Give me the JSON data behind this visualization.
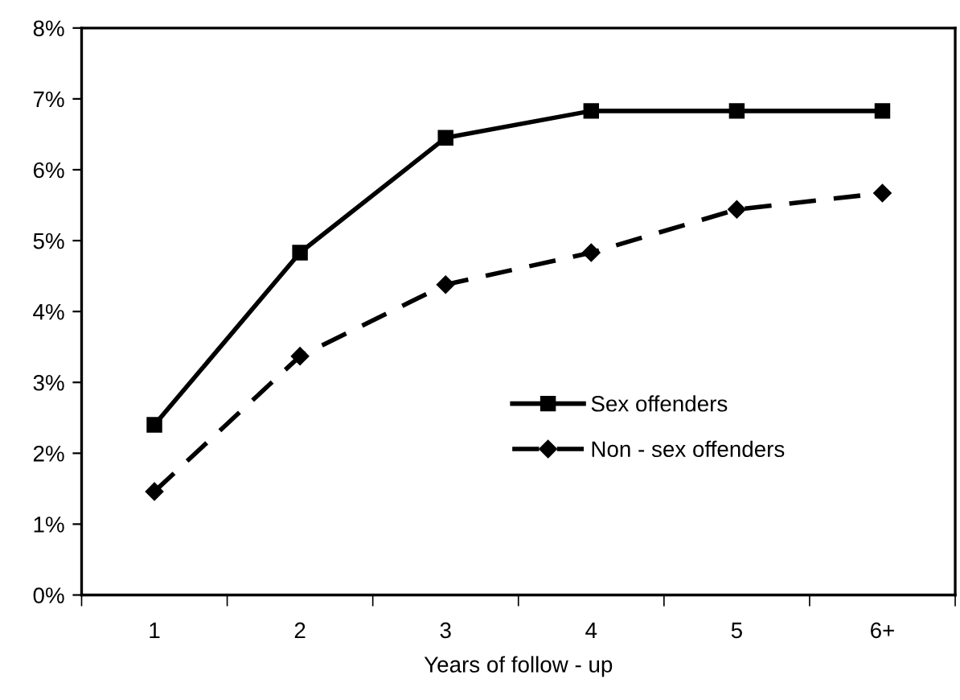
{
  "chart_data": {
    "type": "line",
    "xlabel": "Years of follow - up",
    "categories": [
      "1",
      "2",
      "3",
      "4",
      "5",
      "6+"
    ],
    "series": [
      {
        "name": "Sex offenders",
        "color": "#000000",
        "values": [
          2.4,
          4.83,
          6.45,
          6.83,
          6.83,
          6.83
        ],
        "marker": "square",
        "line_style": "solid"
      },
      {
        "name": "Non - sex offenders",
        "color": "#000000",
        "values": [
          1.46,
          3.37,
          4.38,
          4.83,
          5.44,
          5.67
        ],
        "marker": "diamond",
        "line_style": "dashed"
      }
    ],
    "ylim": [
      0,
      8
    ],
    "yticks": [
      {
        "value": 0,
        "label": "0%"
      },
      {
        "value": 1,
        "label": "1%"
      },
      {
        "value": 2,
        "label": "2%"
      },
      {
        "value": 3,
        "label": "3%"
      },
      {
        "value": 4,
        "label": "4%"
      },
      {
        "value": 5,
        "label": "5%"
      },
      {
        "value": 6,
        "label": "6%"
      },
      {
        "value": 7,
        "label": "7%"
      },
      {
        "value": 8,
        "label": "8%"
      }
    ],
    "grid": false,
    "legend": "bottom right"
  }
}
